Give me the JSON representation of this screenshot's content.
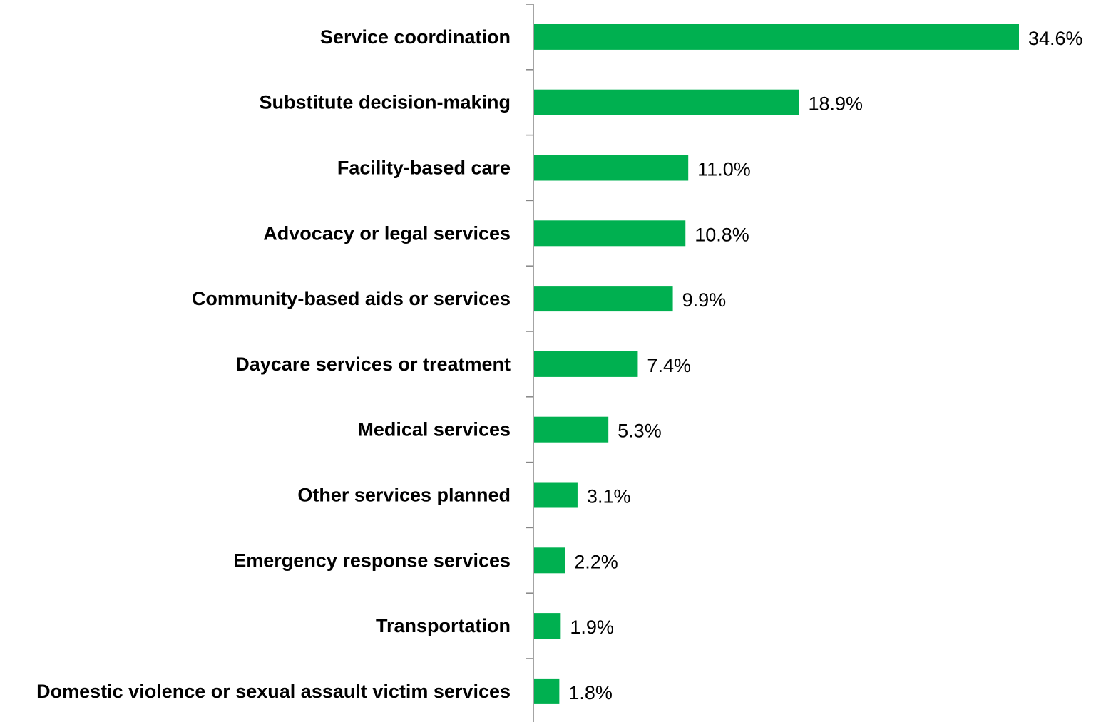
{
  "chart_data": {
    "type": "bar",
    "orientation": "horizontal",
    "categories": [
      "Service coordination",
      "Substitute decision-making",
      "Facility-based care",
      "Advocacy or legal services",
      "Community-based aids or services",
      "Daycare services or treatment",
      "Medical services",
      "Other services planned",
      "Emergency response services",
      "Transportation",
      "Domestic violence or sexual assault victim services"
    ],
    "values": [
      34.6,
      18.9,
      11.0,
      10.8,
      9.9,
      7.4,
      5.3,
      3.1,
      2.2,
      1.9,
      1.8
    ],
    "value_labels": [
      "34.6%",
      "18.9%",
      "11.0%",
      "10.8%",
      "9.9%",
      "7.4%",
      "5.3%",
      "3.1%",
      "2.2%",
      "1.9%",
      "1.8%"
    ],
    "value_unit": "%",
    "xlim": [
      0,
      35
    ],
    "grid": false,
    "legend": "none",
    "colors": {
      "bar": "#00b050",
      "axis": "#868686",
      "text": "#000000"
    }
  }
}
